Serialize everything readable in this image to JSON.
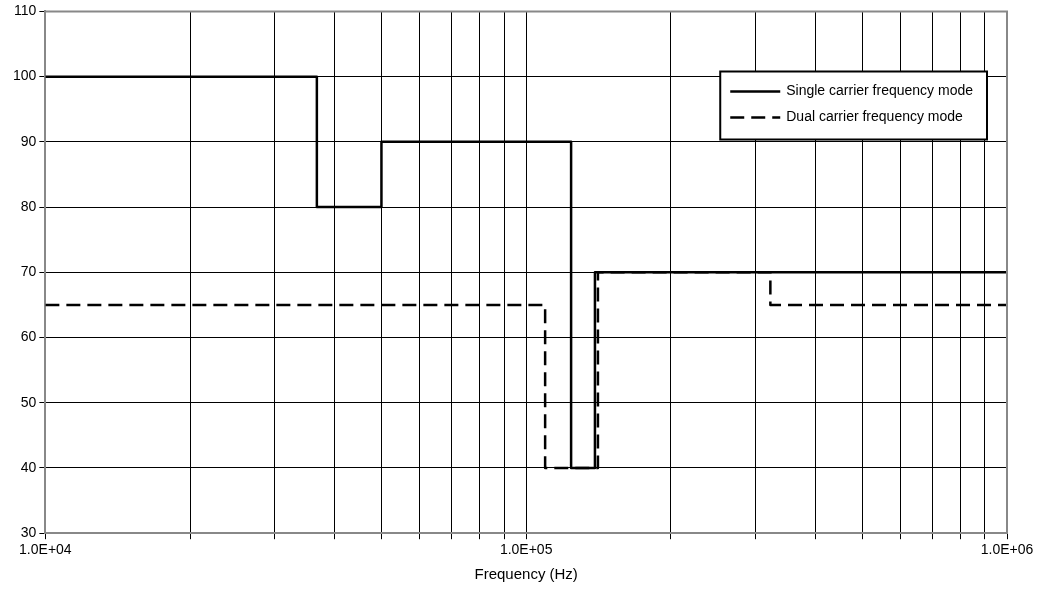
{
  "chart_data": {
    "type": "step",
    "xlabel": "Frequency (Hz)",
    "series": [
      {
        "name": "Single carrier frequency mode",
        "color": "#000000",
        "line_style": "solid",
        "x": [
          10000,
          36700,
          50000,
          124000,
          139000,
          1000000
        ],
        "values": [
          100,
          80,
          90,
          40,
          70,
          70
        ]
      },
      {
        "name": "Dual carrier frequency mode",
        "color": "#000000",
        "line_style": "dashed",
        "x": [
          10000,
          109500,
          141000,
          322000,
          1000000
        ],
        "values": [
          65,
          40,
          70,
          65,
          65
        ]
      }
    ],
    "log": "x",
    "xlim": [
      10000,
      1000000
    ],
    "xticks": [
      {
        "value": 10000,
        "label": "1.0E+04"
      },
      {
        "value": 20000,
        "label": null
      },
      {
        "value": 30000,
        "label": null
      },
      {
        "value": 40000,
        "label": null
      },
      {
        "value": 50000,
        "label": null
      },
      {
        "value": 60000,
        "label": null
      },
      {
        "value": 70000,
        "label": null
      },
      {
        "value": 80000,
        "label": null
      },
      {
        "value": 90000,
        "label": null
      },
      {
        "value": 100000,
        "label": "1.0E+05"
      },
      {
        "value": 200000,
        "label": null
      },
      {
        "value": 300000,
        "label": null
      },
      {
        "value": 400000,
        "label": null
      },
      {
        "value": 500000,
        "label": null
      },
      {
        "value": 600000,
        "label": null
      },
      {
        "value": 700000,
        "label": null
      },
      {
        "value": 800000,
        "label": null
      },
      {
        "value": 900000,
        "label": null
      },
      {
        "value": 1000000,
        "label": "1.0E+06"
      }
    ],
    "ylim": [
      30,
      110
    ],
    "yticks": [
      30,
      40,
      50,
      60,
      70,
      80,
      90,
      100,
      110
    ],
    "grid": true,
    "legend": "top right",
    "marker": "none"
  }
}
